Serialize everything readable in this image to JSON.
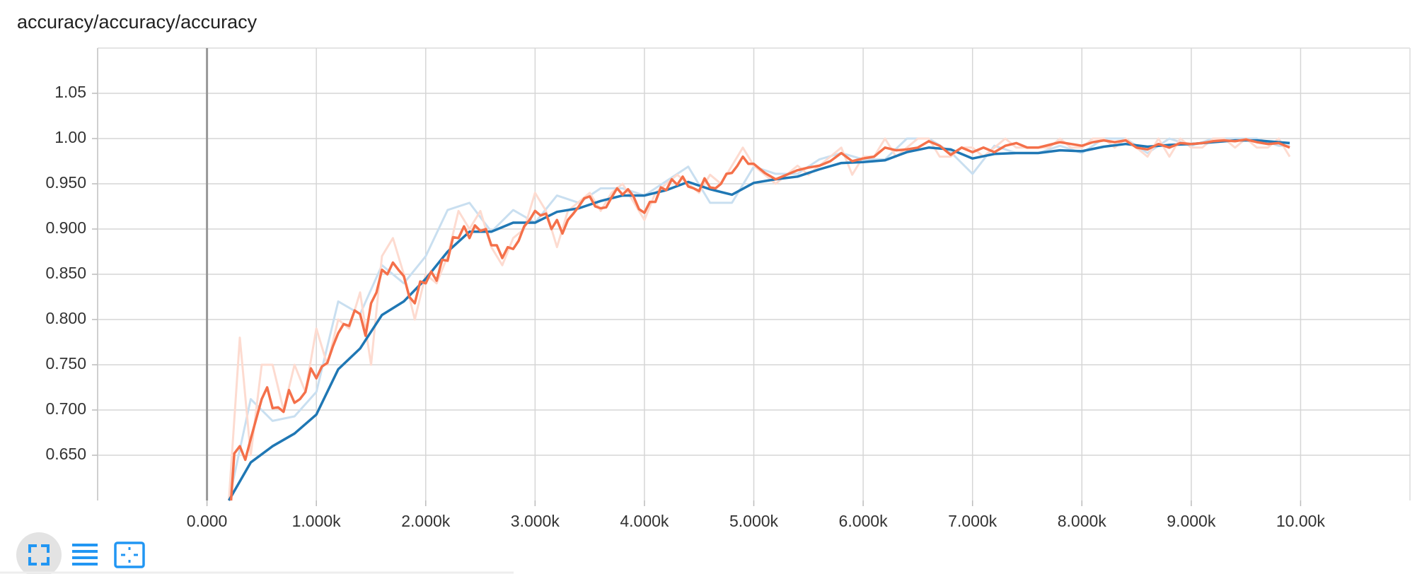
{
  "chart_data": {
    "type": "line",
    "title": "accuracy/accuracy/accuracy",
    "xlim": [
      -1000,
      11000
    ],
    "ylim": [
      0.6,
      1.1
    ],
    "grid": true,
    "xticks": [
      {
        "value": 0,
        "label": "0.000"
      },
      {
        "value": 1000,
        "label": "1.000k"
      },
      {
        "value": 2000,
        "label": "2.000k"
      },
      {
        "value": 3000,
        "label": "3.000k"
      },
      {
        "value": 4000,
        "label": "4.000k"
      },
      {
        "value": 5000,
        "label": "5.000k"
      },
      {
        "value": 6000,
        "label": "6.000k"
      },
      {
        "value": 7000,
        "label": "7.000k"
      },
      {
        "value": 8000,
        "label": "8.000k"
      },
      {
        "value": 9000,
        "label": "9.000k"
      },
      {
        "value": 10000,
        "label": "10.00k"
      }
    ],
    "yticks": [
      {
        "value": 0.65,
        "label": "0.650"
      },
      {
        "value": 0.7,
        "label": "0.700"
      },
      {
        "value": 0.75,
        "label": "0.750"
      },
      {
        "value": 0.8,
        "label": "0.800"
      },
      {
        "value": 0.85,
        "label": "0.850"
      },
      {
        "value": 0.9,
        "label": "0.900"
      },
      {
        "value": 0.95,
        "label": "0.950"
      },
      {
        "value": 1,
        "label": "1.00"
      },
      1.05
    ],
    "series": [
      {
        "color": "#c9dff0",
        "width": 3,
        "x": [
          200,
          400,
          600,
          800,
          1000,
          1200,
          1400,
          1600,
          1800,
          2000,
          2200,
          2400,
          2600,
          2800,
          3000,
          3200,
          3400,
          3600,
          3800,
          4000,
          4200,
          4400,
          4600,
          4800,
          5000,
          5200,
          5400,
          5600,
          5800,
          6000,
          6200,
          6400,
          6600,
          6800,
          7000,
          7200,
          7400,
          7600,
          7800,
          8000,
          8200,
          8400,
          8600,
          8800,
          9000,
          9200,
          9400,
          9600,
          9800,
          9900
        ],
        "values": [
          0.6,
          0.712,
          0.688,
          0.693,
          0.72,
          0.82,
          0.806,
          0.86,
          0.84,
          0.87,
          0.921,
          0.929,
          0.897,
          0.921,
          0.907,
          0.937,
          0.929,
          0.945,
          0.945,
          0.937,
          0.953,
          0.969,
          0.929,
          0.929,
          0.969,
          0.961,
          0.961,
          0.977,
          0.984,
          0.977,
          0.977,
          1.0,
          1.0,
          0.985,
          0.961,
          0.992,
          0.984,
          0.984,
          0.992,
          0.984,
          1.0,
          1.0,
          0.984,
          1.0,
          0.992,
          1.0,
          1.0,
          1.0,
          0.992,
          0.992
        ]
      },
      {
        "color": "#fddbd0",
        "width": 3,
        "x": [
          200,
          300,
          400,
          500,
          600,
          700,
          800,
          900,
          1000,
          1100,
          1200,
          1300,
          1400,
          1500,
          1600,
          1700,
          1800,
          1900,
          2000,
          2100,
          2200,
          2300,
          2400,
          2500,
          2600,
          2700,
          2800,
          2900,
          3000,
          3100,
          3200,
          3300,
          3400,
          3500,
          3600,
          3700,
          3800,
          3900,
          4000,
          4100,
          4200,
          4300,
          4400,
          4500,
          4600,
          4700,
          4800,
          4900,
          5000,
          5100,
          5200,
          5300,
          5400,
          5500,
          5600,
          5700,
          5800,
          5900,
          6000,
          6100,
          6200,
          6300,
          6400,
          6500,
          6600,
          6700,
          6800,
          6900,
          7000,
          7100,
          7200,
          7300,
          7400,
          7500,
          7600,
          7700,
          7800,
          7900,
          8000,
          8100,
          8200,
          8300,
          8400,
          8500,
          8600,
          8700,
          8800,
          8900,
          9000,
          9100,
          9200,
          9300,
          9400,
          9500,
          9600,
          9700,
          9800,
          9900
        ],
        "values": [
          0.6,
          0.78,
          0.65,
          0.75,
          0.75,
          0.7,
          0.75,
          0.72,
          0.79,
          0.75,
          0.8,
          0.79,
          0.83,
          0.75,
          0.87,
          0.89,
          0.85,
          0.8,
          0.85,
          0.84,
          0.87,
          0.92,
          0.9,
          0.92,
          0.88,
          0.86,
          0.89,
          0.9,
          0.94,
          0.92,
          0.88,
          0.92,
          0.93,
          0.94,
          0.92,
          0.94,
          0.95,
          0.93,
          0.91,
          0.94,
          0.95,
          0.96,
          0.95,
          0.94,
          0.96,
          0.95,
          0.97,
          0.99,
          0.97,
          0.96,
          0.95,
          0.96,
          0.97,
          0.96,
          0.97,
          0.98,
          0.99,
          0.96,
          0.98,
          0.98,
          1.0,
          0.98,
          0.99,
          1.0,
          1.0,
          0.98,
          0.98,
          0.99,
          0.99,
          0.98,
          0.99,
          1.0,
          0.99,
          0.99,
          0.99,
          0.99,
          1.0,
          0.99,
          0.99,
          1.0,
          1.0,
          0.99,
          1.0,
          0.99,
          0.98,
          1.0,
          0.98,
          1.0,
          0.99,
          0.99,
          1.0,
          1.0,
          0.99,
          1.0,
          0.99,
          0.99,
          1.0,
          0.98
        ]
      },
      {
        "color": "#1f77b4",
        "width": 3.5,
        "x": [
          200,
          400,
          600,
          800,
          1000,
          1200,
          1400,
          1600,
          1800,
          2000,
          2200,
          2400,
          2600,
          2800,
          3000,
          3200,
          3400,
          3600,
          3800,
          4000,
          4200,
          4400,
          4600,
          4800,
          5000,
          5200,
          5400,
          5600,
          5800,
          6000,
          6200,
          6400,
          6600,
          6800,
          7000,
          7200,
          7400,
          7600,
          7800,
          8000,
          8200,
          8400,
          8600,
          8800,
          9000,
          9200,
          9400,
          9600,
          9800,
          9900
        ],
        "values": [
          0.6,
          0.642,
          0.66,
          0.674,
          0.695,
          0.745,
          0.768,
          0.805,
          0.82,
          0.845,
          0.875,
          0.897,
          0.897,
          0.907,
          0.907,
          0.919,
          0.923,
          0.931,
          0.937,
          0.937,
          0.943,
          0.952,
          0.944,
          0.938,
          0.951,
          0.955,
          0.958,
          0.966,
          0.973,
          0.974,
          0.976,
          0.985,
          0.99,
          0.988,
          0.978,
          0.983,
          0.984,
          0.984,
          0.987,
          0.986,
          0.991,
          0.994,
          0.991,
          0.993,
          0.994,
          0.996,
          0.998,
          0.998,
          0.996,
          0.995
        ]
      },
      {
        "color": "#f4704a",
        "width": 3.5,
        "x": [
          220,
          250,
          300,
          350,
          400,
          450,
          500,
          550,
          600,
          650,
          700,
          750,
          800,
          850,
          900,
          950,
          1000,
          1050,
          1100,
          1150,
          1200,
          1250,
          1300,
          1350,
          1400,
          1450,
          1500,
          1550,
          1600,
          1650,
          1700,
          1750,
          1800,
          1850,
          1900,
          1950,
          2000,
          2050,
          2100,
          2150,
          2200,
          2250,
          2300,
          2350,
          2400,
          2450,
          2500,
          2550,
          2600,
          2650,
          2700,
          2750,
          2800,
          2850,
          2900,
          2950,
          3000,
          3050,
          3100,
          3150,
          3200,
          3250,
          3300,
          3350,
          3400,
          3450,
          3500,
          3550,
          3600,
          3650,
          3700,
          3750,
          3800,
          3850,
          3900,
          3950,
          4000,
          4050,
          4100,
          4150,
          4200,
          4250,
          4300,
          4350,
          4400,
          4450,
          4500,
          4550,
          4600,
          4650,
          4700,
          4750,
          4800,
          4850,
          4900,
          4950,
          5000,
          5100,
          5200,
          5300,
          5400,
          5500,
          5600,
          5700,
          5800,
          5900,
          6000,
          6100,
          6200,
          6300,
          6400,
          6500,
          6600,
          6700,
          6800,
          6900,
          7000,
          7100,
          7200,
          7300,
          7400,
          7500,
          7600,
          7700,
          7800,
          7900,
          8000,
          8100,
          8200,
          8300,
          8400,
          8500,
          8600,
          8700,
          8800,
          8900,
          9000,
          9100,
          9200,
          9300,
          9400,
          9500,
          9600,
          9700,
          9800,
          9900
        ],
        "values": [
          0.6,
          0.652,
          0.66,
          0.645,
          0.668,
          0.69,
          0.712,
          0.725,
          0.702,
          0.703,
          0.698,
          0.722,
          0.708,
          0.712,
          0.72,
          0.746,
          0.735,
          0.748,
          0.752,
          0.77,
          0.785,
          0.795,
          0.793,
          0.81,
          0.806,
          0.782,
          0.818,
          0.83,
          0.855,
          0.85,
          0.863,
          0.855,
          0.848,
          0.825,
          0.818,
          0.842,
          0.84,
          0.853,
          0.843,
          0.866,
          0.865,
          0.891,
          0.89,
          0.903,
          0.89,
          0.904,
          0.898,
          0.9,
          0.882,
          0.882,
          0.868,
          0.88,
          0.878,
          0.887,
          0.903,
          0.91,
          0.92,
          0.915,
          0.917,
          0.9,
          0.91,
          0.895,
          0.91,
          0.917,
          0.925,
          0.934,
          0.936,
          0.925,
          0.923,
          0.924,
          0.935,
          0.945,
          0.938,
          0.944,
          0.936,
          0.922,
          0.918,
          0.93,
          0.93,
          0.946,
          0.943,
          0.955,
          0.949,
          0.958,
          0.947,
          0.945,
          0.942,
          0.956,
          0.946,
          0.945,
          0.95,
          0.961,
          0.962,
          0.97,
          0.98,
          0.972,
          0.972,
          0.962,
          0.955,
          0.96,
          0.965,
          0.968,
          0.97,
          0.975,
          0.984,
          0.975,
          0.978,
          0.98,
          0.99,
          0.987,
          0.988,
          0.99,
          0.997,
          0.992,
          0.982,
          0.99,
          0.985,
          0.99,
          0.985,
          0.992,
          0.995,
          0.99,
          0.99,
          0.993,
          0.996,
          0.994,
          0.992,
          0.996,
          0.998,
          0.996,
          0.998,
          0.99,
          0.988,
          0.994,
          0.99,
          0.995,
          0.994,
          0.995,
          0.997,
          0.998,
          0.997,
          0.999,
          0.996,
          0.994,
          0.995,
          0.99
        ]
      }
    ]
  }
}
